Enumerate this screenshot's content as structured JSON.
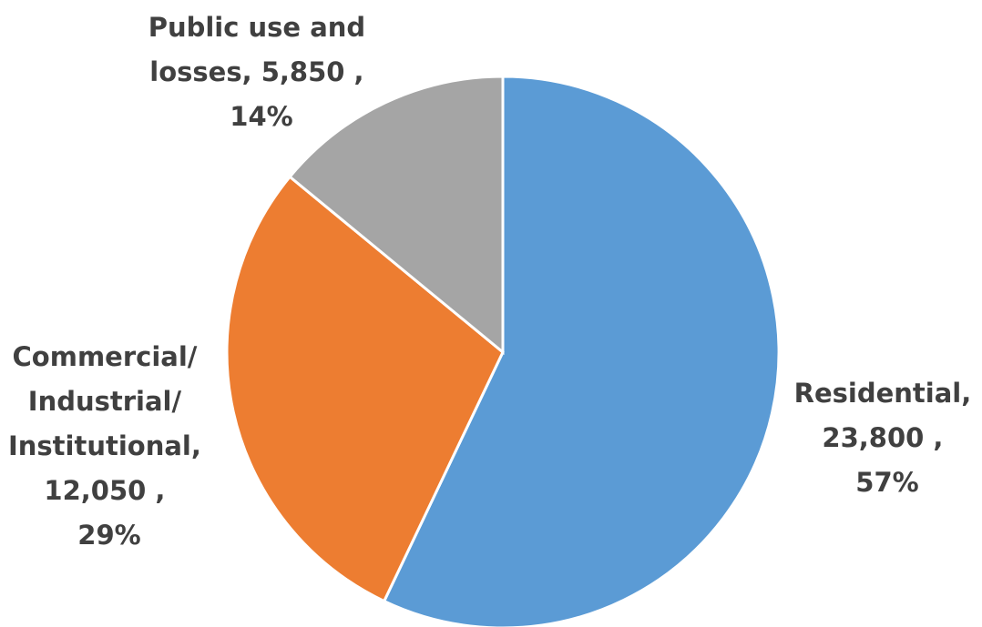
{
  "chart_data": {
    "type": "pie",
    "title": "",
    "slices": [
      {
        "label": "Residential",
        "value": 23800,
        "value_text": "23,800",
        "percent_text": "57%",
        "color": "#5b9bd5",
        "label_lines": [
          "Residential,",
          "23,800 ,",
          "57%"
        ]
      },
      {
        "label": "Commercial/ Industrial/ Institutional",
        "value": 12050,
        "value_text": "12,050",
        "percent_text": "29%",
        "color": "#ed7d31",
        "label_lines": [
          "Commercial/",
          "Industrial/",
          "Institutional,",
          "12,050 ,",
          "29%"
        ]
      },
      {
        "label": "Public use and losses",
        "value": 5850,
        "value_text": "5,850",
        "percent_text": "14%",
        "color": "#a5a5a5",
        "label_lines": [
          "Public use and",
          "losses,  5,850 ,",
          "14%"
        ]
      }
    ],
    "start_angle": "12 o'clock",
    "direction": "clockwise",
    "legend": "none",
    "data_labels": "outside-end"
  }
}
